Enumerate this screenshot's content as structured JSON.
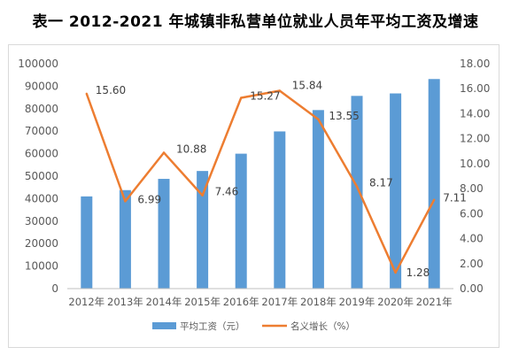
{
  "chart_data": {
    "type": "bar",
    "title": "表一 2012-2021 年城镇非私营单位就业人员年平均工资及增速",
    "categories": [
      "2012年",
      "2013年",
      "2014年",
      "2015年",
      "2016年",
      "2017年",
      "2018年",
      "2019年",
      "2020年",
      "2021年"
    ],
    "series": [
      {
        "name": "平均工资（元）",
        "type": "bar",
        "axis": "left",
        "color": "#5b9bd5",
        "values": [
          41000,
          43800,
          48800,
          52300,
          60000,
          69900,
          79400,
          85700,
          86800,
          93200
        ]
      },
      {
        "name": "名义增长（%）",
        "type": "line",
        "axis": "right",
        "color": "#ed7d31",
        "values": [
          15.6,
          6.99,
          10.88,
          7.46,
          15.27,
          15.84,
          13.55,
          8.17,
          1.28,
          7.11
        ],
        "labels": [
          "15.60",
          "6.99",
          "10.88",
          "7.46",
          "15.27",
          "15.84",
          "13.55",
          "8.17",
          "1.28",
          "7.11"
        ]
      }
    ],
    "y_left": {
      "ylim": [
        0,
        100000
      ],
      "ticks": [
        "0",
        "10000",
        "20000",
        "30000",
        "40000",
        "50000",
        "60000",
        "70000",
        "80000",
        "90000",
        "100000"
      ]
    },
    "y_right": {
      "ylim": [
        0,
        18
      ],
      "ticks": [
        "0.00",
        "2.00",
        "4.00",
        "6.00",
        "8.00",
        "10.00",
        "12.00",
        "14.00",
        "16.00",
        "18.00"
      ]
    },
    "grid": false,
    "legend": "bottom"
  }
}
